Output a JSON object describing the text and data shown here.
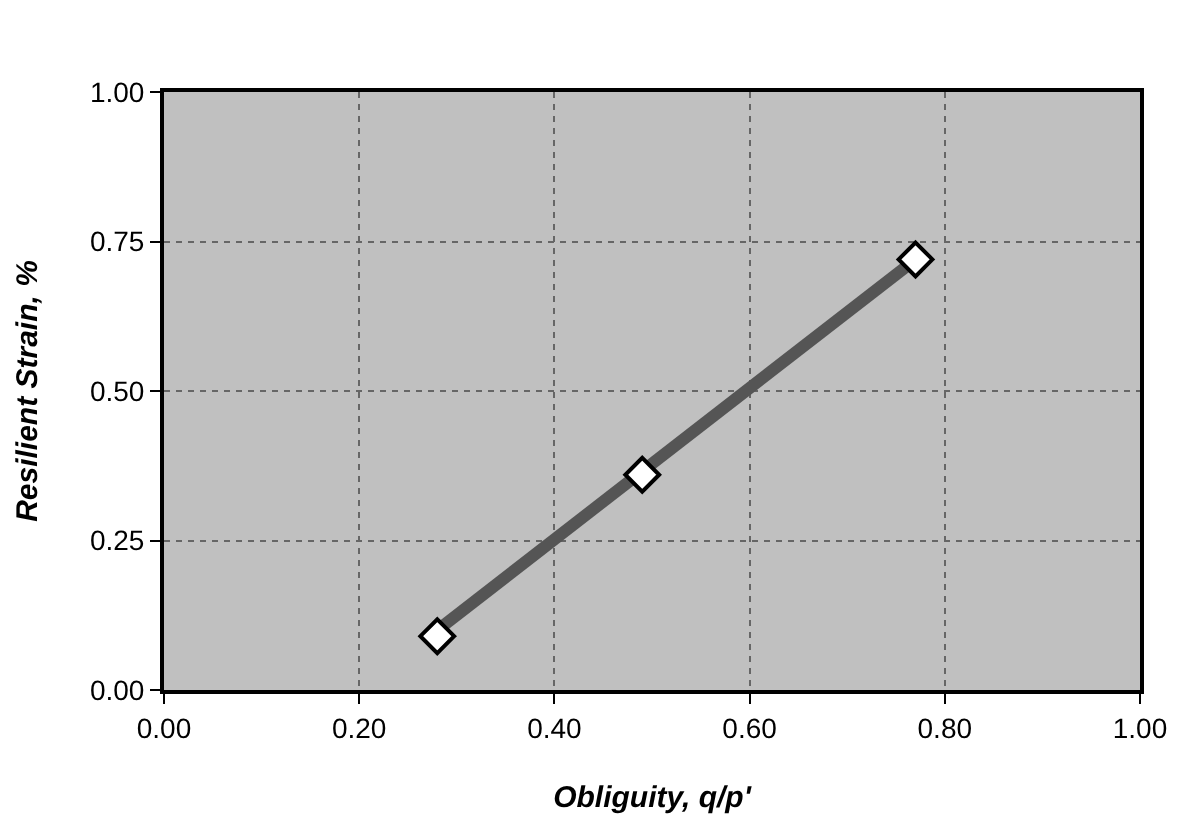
{
  "chart_data": {
    "type": "scatter",
    "xlabel": "Obliguity, q/p'",
    "ylabel": "Resilient Strain, %",
    "xlim": [
      0,
      1
    ],
    "ylim": [
      0,
      1
    ],
    "xticks": [
      {
        "value": 0,
        "label": "0.00"
      },
      {
        "value": 0.2,
        "label": "0.20"
      },
      {
        "value": 0.4,
        "label": "0.40"
      },
      {
        "value": 0.6,
        "label": "0.60"
      },
      {
        "value": 0.8,
        "label": "0.80"
      },
      {
        "value": 1,
        "label": "1.00"
      }
    ],
    "yticks": [
      {
        "value": 0,
        "label": "0.00"
      },
      {
        "value": 0.25,
        "label": "0.25"
      },
      {
        "value": 0.5,
        "label": "0.50"
      },
      {
        "value": 0.75,
        "label": "0.75"
      },
      {
        "value": 1,
        "label": "1.00"
      }
    ],
    "grid": true,
    "series": [
      {
        "type": "line",
        "color": "#555555",
        "x": [
          0.28,
          0.77
        ],
        "values": [
          0.1,
          0.72
        ],
        "marker": "none"
      },
      {
        "color": "#ffffff",
        "x": [
          0.28,
          0.49,
          0.77
        ],
        "values": [
          0.09,
          0.36,
          0.72
        ],
        "marker": "diamond"
      }
    ]
  }
}
